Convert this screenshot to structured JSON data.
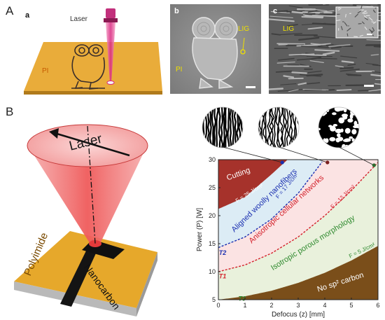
{
  "figure": {
    "panel_A": "A",
    "panel_B": "B",
    "sub_a": "a",
    "sub_b": "b",
    "sub_c": "c"
  },
  "panel_a": {
    "laser_label": "Laser",
    "substrate_label": "PI"
  },
  "panel_b": {
    "lig_label": "LIG",
    "substrate_label": "PI"
  },
  "panel_c": {
    "lig_label": "LIG"
  },
  "schematic": {
    "laser_label": "Laser",
    "substrate_label": "Polyimide",
    "product_label": "Nanocarbon"
  },
  "colors": {
    "substrate": "#e8a82c",
    "laser": "#f06a6a",
    "cutting": "#a6322b",
    "aligned": "#dcecf5",
    "anisotropic": "#fbe3e3",
    "isotropic": "#e9f1dc",
    "no_carbon": "#7a4e1a",
    "fluence_blue": "#1a2fb0",
    "fluence_red": "#d3202a",
    "fluence_green": "#2f8a2f"
  },
  "chart_data": {
    "type": "area",
    "xlabel": "Defocus (z) [mm]",
    "ylabel": "Power (P) [W]",
    "xlim": [
      0,
      6
    ],
    "ylim": [
      5,
      30
    ],
    "x_ticks": [
      "0",
      "1",
      "2",
      "3",
      "4",
      "5",
      "6"
    ],
    "y_ticks": [
      "5",
      "10",
      "15",
      "20",
      "25",
      "30"
    ],
    "thresholds": [
      {
        "name": "T0",
        "fluence": "F = 5 J/cm²",
        "x": [
          0,
          1,
          2,
          3,
          4,
          5,
          6
        ],
        "y": [
          5,
          5.6,
          6.6,
          8.0,
          9.8,
          12.0,
          14.6
        ]
      },
      {
        "name": "T1",
        "fluence": "F = 12 J/cm²",
        "x": [
          0,
          1,
          2,
          3,
          4,
          5,
          6
        ],
        "y": [
          10,
          11.2,
          13.3,
          16.2,
          20.0,
          24.5,
          29.5
        ]
      },
      {
        "name": "T2",
        "fluence": "F = 17 J/cm²",
        "x": [
          0,
          1,
          2,
          3,
          3.9
        ],
        "y": [
          14.3,
          16.2,
          19.4,
          24.0,
          29.6
        ]
      },
      {
        "name": "",
        "fluence": "F = 25 J/cm²",
        "x": [
          0,
          1,
          2,
          2.6
        ],
        "y": [
          21.2,
          23.3,
          27.4,
          30
        ]
      }
    ],
    "regions": [
      {
        "label": "Cutting",
        "color": "#a6322b"
      },
      {
        "label": "Aligned woolly nanofibers",
        "color": "#1a2fb0"
      },
      {
        "label": "Anisotropic cellular networks",
        "color": "#d3202a"
      },
      {
        "label": "Isotropic porous morphology",
        "color": "#2f8a2f"
      },
      {
        "label": "No sp² carbon",
        "color": "#ffffff"
      }
    ],
    "markers": [
      {
        "x": 2.4,
        "y": 29.5,
        "color": "#1a2fb0"
      },
      {
        "x": 4.1,
        "y": 29.5,
        "color": "#7a1f1f"
      },
      {
        "x": 5.85,
        "y": 29.0,
        "color": "#2f6b2f"
      }
    ]
  }
}
